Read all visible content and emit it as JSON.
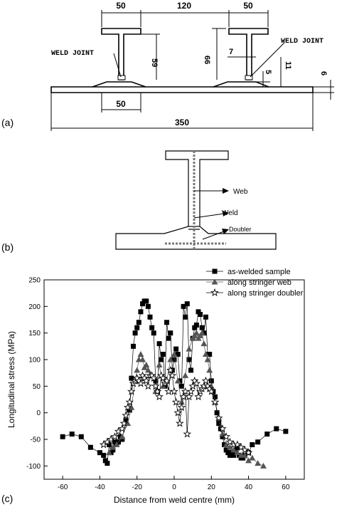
{
  "panel_a": {
    "label": "(a)",
    "dims": {
      "top_left": "50",
      "top_mid": "120",
      "top_right": "50",
      "height_59": "59",
      "height_66": "66",
      "web_7": "7",
      "dim_5": "5",
      "dim_11": "11",
      "dim_6": "6",
      "bottom_50": "50",
      "overall": "350"
    },
    "weld_joint_left": "WELD JOINT",
    "weld_joint_right": "WELD JOINT"
  },
  "panel_b": {
    "label": "(b)",
    "web": "Web",
    "weld": "Weld",
    "doubler": "Doubler"
  },
  "panel_c": {
    "label": "(c)"
  },
  "chart_data": {
    "type": "scatter",
    "xlabel": "Distance from weld centre (mm)",
    "ylabel": "Longitudinal stress (MPa)",
    "xlim": [
      -70,
      70
    ],
    "ylim": [
      -125,
      250
    ],
    "xticks": [
      -60,
      -40,
      -20,
      0,
      20,
      40,
      60
    ],
    "yticks": [
      -100,
      -50,
      0,
      50,
      100,
      150,
      200,
      250
    ],
    "legend_position": "top-right",
    "series": [
      {
        "name": "as-welded sample",
        "marker": "square",
        "color": "#000000",
        "x": [
          -60,
          -55,
          -50,
          -45,
          -40,
          -38,
          -37,
          -36,
          -35,
          -34,
          -33,
          -32,
          -31,
          -30,
          -29,
          -28,
          -26,
          -24,
          -23,
          -22,
          -21,
          -20,
          -19,
          -18,
          -17,
          -16,
          -15,
          -14,
          -13,
          -12,
          -11,
          -10,
          -9,
          -8,
          -7,
          -6,
          -5,
          -4,
          -3,
          -2,
          -1,
          0,
          1,
          2,
          3,
          4,
          5,
          6,
          7,
          8,
          9,
          10,
          11,
          12,
          13,
          14,
          15,
          16,
          17,
          18,
          19,
          20,
          21,
          22,
          23,
          24,
          25,
          26,
          27,
          28,
          29,
          30,
          31,
          32,
          33,
          34,
          35,
          36,
          37,
          38,
          40,
          42,
          45,
          50,
          55,
          60
        ],
        "y": [
          -45,
          -40,
          -45,
          -65,
          -75,
          -80,
          -90,
          -95,
          -60,
          -75,
          -70,
          -55,
          -60,
          -55,
          -45,
          -50,
          -15,
          5,
          65,
          125,
          150,
          160,
          170,
          190,
          205,
          210,
          210,
          200,
          180,
          160,
          150,
          60,
          40,
          130,
          100,
          110,
          50,
          170,
          140,
          150,
          80,
          100,
          120,
          110,
          60,
          50,
          200,
          180,
          205,
          100,
          80,
          140,
          160,
          165,
          190,
          185,
          160,
          150,
          180,
          110,
          110,
          60,
          40,
          30,
          0,
          -20,
          -30,
          -45,
          -60,
          -70,
          -75,
          -80,
          -75,
          -80,
          -70,
          -65,
          -80,
          -85,
          -85,
          -80,
          -75,
          -60,
          -55,
          -40,
          -30,
          -35
        ]
      },
      {
        "name": "along stringer web",
        "marker": "triangle",
        "color": "#555555",
        "x": [
          -35,
          -33,
          -31,
          -28,
          -25,
          -23,
          -21,
          -20,
          -19,
          -18,
          -17,
          -16,
          -15,
          -14,
          -12,
          -10,
          -8,
          -6,
          -4,
          -2,
          0,
          2,
          4,
          6,
          8,
          10,
          11,
          12,
          13,
          14,
          15,
          16,
          17,
          18,
          19,
          20,
          22,
          24,
          26,
          28,
          30,
          32,
          34,
          36,
          38,
          40,
          42,
          45,
          48
        ],
        "y": [
          -75,
          -65,
          -60,
          -45,
          -20,
          10,
          60,
          80,
          100,
          110,
          100,
          85,
          90,
          80,
          70,
          40,
          90,
          50,
          60,
          100,
          110,
          60,
          20,
          70,
          120,
          140,
          145,
          150,
          140,
          145,
          150,
          130,
          110,
          100,
          80,
          50,
          20,
          -10,
          -40,
          -60,
          -65,
          -70,
          -75,
          -80,
          -80,
          -90,
          -85,
          -95,
          -100
        ]
      },
      {
        "name": "along stringer doubler",
        "marker": "star",
        "color": "#000000",
        "x": [
          -38,
          -36,
          -34,
          -32,
          -30,
          -28,
          -27,
          -26,
          -25,
          -24,
          -23,
          -22,
          -21,
          -20,
          -19,
          -18,
          -17,
          -16,
          -15,
          -14,
          -13,
          -12,
          -11,
          -10,
          -9,
          -8,
          -7,
          -6,
          -5,
          -4,
          -3,
          -2,
          -1,
          0,
          1,
          2,
          3,
          4,
          5,
          6,
          7,
          8,
          9,
          10,
          11,
          12,
          13,
          14,
          15,
          16,
          17,
          18,
          19,
          20,
          22,
          24,
          26,
          28,
          30,
          32,
          34,
          36,
          38,
          40
        ],
        "y": [
          -60,
          -55,
          -50,
          -45,
          -35,
          -30,
          -20,
          -5,
          10,
          20,
          40,
          55,
          60,
          65,
          60,
          55,
          70,
          65,
          60,
          50,
          70,
          70,
          65,
          50,
          40,
          30,
          70,
          65,
          55,
          60,
          40,
          80,
          70,
          40,
          20,
          0,
          -20,
          10,
          30,
          40,
          -40,
          30,
          40,
          50,
          60,
          55,
          30,
          40,
          45,
          50,
          60,
          50,
          45,
          40,
          20,
          -10,
          -30,
          -45,
          -55,
          -60,
          -60,
          -65,
          -70,
          -75
        ]
      }
    ]
  }
}
